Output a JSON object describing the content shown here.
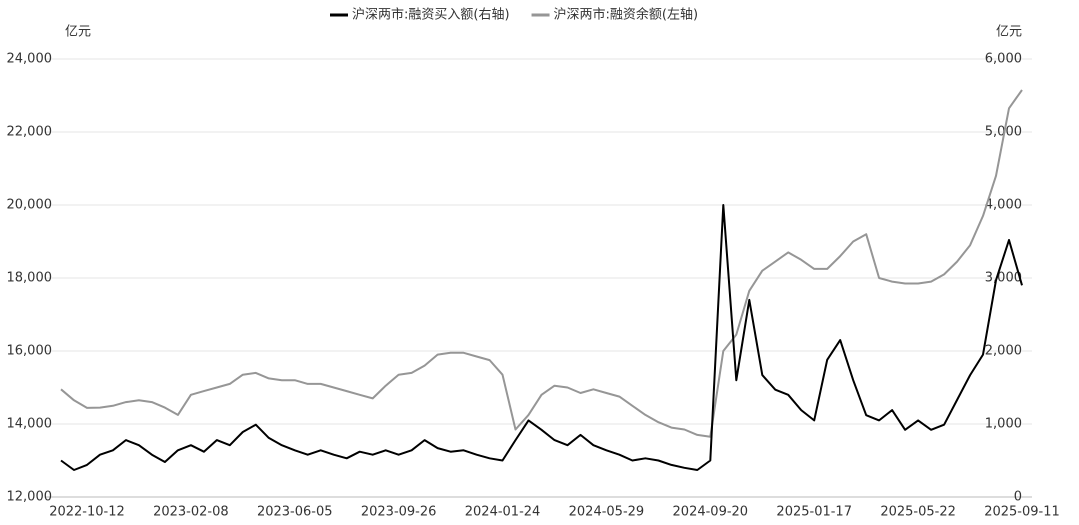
{
  "chart_data": {
    "type": "line",
    "y_label": "亿元",
    "y2_label": "亿元",
    "categories": [
      null,
      null,
      "2022-10-12",
      null,
      null,
      null,
      null,
      null,
      null,
      null,
      "2023-02-08",
      null,
      null,
      null,
      null,
      null,
      null,
      null,
      "2023-06-05",
      null,
      null,
      null,
      null,
      null,
      null,
      null,
      "2023-09-26",
      null,
      null,
      null,
      null,
      null,
      null,
      null,
      "2024-01-24",
      null,
      null,
      null,
      null,
      null,
      null,
      null,
      "2024-05-29",
      null,
      null,
      null,
      null,
      null,
      null,
      null,
      "2024-09-20",
      null,
      null,
      null,
      null,
      null,
      null,
      null,
      "2025-01-17",
      null,
      null,
      null,
      null,
      null,
      null,
      null,
      "2025-05-22",
      null,
      null,
      null,
      null,
      null,
      null,
      null,
      "2025-09-11"
    ],
    "series": [
      {
        "name": "沪深两市:融资买入额(右轴)",
        "color": "#000000",
        "axis": "y2",
        "values": [
          500,
          370,
          440,
          580,
          640,
          780,
          710,
          580,
          480,
          640,
          710,
          620,
          780,
          710,
          890,
          990,
          810,
          710,
          640,
          580,
          640,
          580,
          530,
          620,
          580,
          640,
          580,
          640,
          780,
          670,
          620,
          640,
          580,
          530,
          500,
          780,
          1050,
          920,
          780,
          710,
          850,
          710,
          640,
          580,
          500,
          530,
          500,
          440,
          400,
          370,
          500,
          4000,
          1600,
          2700,
          1670,
          1470,
          1400,
          1190,
          1050,
          1880,
          2150,
          1600,
          1120,
          1050,
          1190,
          920,
          1050,
          920,
          990,
          1330,
          1670,
          1950,
          2970,
          3520,
          2900
        ]
      },
      {
        "name": "沪深两市:融资余额(左轴)",
        "color": "#969696",
        "values": [
          14950,
          14650,
          14440,
          14450,
          14500,
          14600,
          14650,
          14600,
          14450,
          14250,
          14800,
          14900,
          15000,
          15100,
          15350,
          15400,
          15250,
          15200,
          15200,
          15100,
          15100,
          15000,
          14900,
          14800,
          14700,
          15050,
          15350,
          15400,
          15600,
          15900,
          15950,
          15950,
          15850,
          15750,
          15350,
          13850,
          14250,
          14800,
          15050,
          15000,
          14850,
          14950,
          14850,
          14750,
          14500,
          14250,
          14050,
          13900,
          13850,
          13700,
          13650,
          16000,
          16450,
          17650,
          18200,
          18450,
          18700,
          18500,
          18250,
          18250,
          18600,
          19000,
          19200,
          18000,
          17900,
          17850,
          17850,
          17900,
          18100,
          18450,
          18900,
          19700,
          20800,
          22650,
          23150
        ]
      }
    ],
    "ylim": [
      12000,
      24000
    ],
    "yticks": [
      {
        "value": 12000,
        "label": "12,000"
      },
      {
        "value": 14000,
        "label": "14,000"
      },
      {
        "value": 16000,
        "label": "16,000"
      },
      {
        "value": 18000,
        "label": "18,000"
      },
      {
        "value": 20000,
        "label": "20,000"
      },
      {
        "value": 22000,
        "label": "22,000"
      },
      {
        "value": 24000,
        "label": "24,000"
      }
    ],
    "y2lim": [
      0,
      6000
    ],
    "y2ticks": [
      0,
      {
        "value": 1000,
        "label": "1,000"
      },
      {
        "value": 2000,
        "label": "2,000"
      },
      {
        "value": 3000,
        "label": "3,000"
      },
      {
        "value": 4000,
        "label": "4,000"
      },
      {
        "value": 5000,
        "label": "5,000"
      },
      {
        "value": 6000,
        "label": "6,000"
      }
    ],
    "grid": true
  }
}
